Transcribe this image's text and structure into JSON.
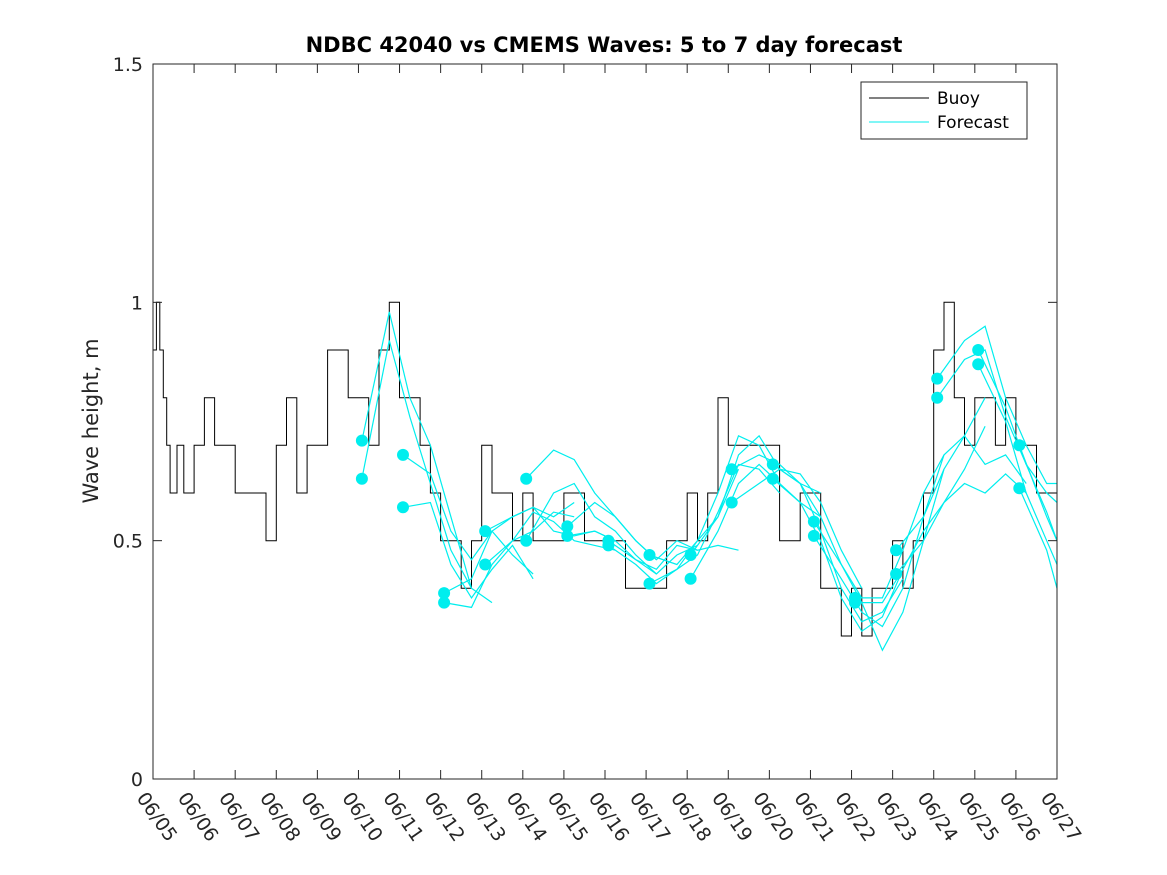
{
  "colors": {
    "buoy": "#000000",
    "forecast": "#00eeee",
    "axis": "#262626"
  },
  "chart_data": {
    "type": "line",
    "title": "NDBC 42040 vs CMEMS Waves: 5 to 7 day forecast",
    "xlabel": "",
    "ylabel": "Wave height, m",
    "xlim": [
      "06/05",
      "06/27"
    ],
    "ylim": [
      0,
      1.5
    ],
    "yticks": [
      0,
      0.5,
      1,
      1.5
    ],
    "ytick_labels": [
      "0",
      "0.5",
      "1",
      "1.5"
    ],
    "xtick_labels": [
      "06/05",
      "06/06",
      "06/07",
      "06/08",
      "06/09",
      "06/10",
      "06/11",
      "06/12",
      "06/13",
      "06/14",
      "06/15",
      "06/16",
      "06/17",
      "06/18",
      "06/19",
      "06/20",
      "06/21",
      "06/22",
      "06/23",
      "06/24",
      "06/25",
      "06/26",
      "06/27"
    ],
    "legend": {
      "position": "top-right",
      "entries": [
        "Buoy",
        "Forecast"
      ]
    },
    "grid": false,
    "series": [
      {
        "name": "Buoy",
        "x": [
          "06/05 00:00",
          "06/05 02:00",
          "06/05 04:00",
          "06/05 06:00",
          "06/05 08:00",
          "06/05 10:00",
          "06/05 14:00",
          "06/05 18:00",
          "06/06 00:00",
          "06/06 06:00",
          "06/06 12:00",
          "06/06 18:00",
          "06/07 00:00",
          "06/07 06:00",
          "06/07 12:00",
          "06/07 18:00",
          "06/08 00:00",
          "06/08 06:00",
          "06/08 12:00",
          "06/08 18:00",
          "06/09 00:00",
          "06/09 06:00",
          "06/09 12:00",
          "06/09 18:00",
          "06/10 00:00",
          "06/10 06:00",
          "06/10 12:00",
          "06/10 18:00",
          "06/11 00:00",
          "06/11 06:00",
          "06/11 12:00",
          "06/11 18:00",
          "06/12 00:00",
          "06/12 06:00",
          "06/12 12:00",
          "06/12 18:00",
          "06/13 00:00",
          "06/13 06:00",
          "06/13 12:00",
          "06/13 18:00",
          "06/14 00:00",
          "06/14 06:00",
          "06/14 12:00",
          "06/14 18:00",
          "06/15 00:00",
          "06/15 06:00",
          "06/15 12:00",
          "06/15 18:00",
          "06/16 00:00",
          "06/16 06:00",
          "06/16 12:00",
          "06/16 18:00",
          "06/17 00:00",
          "06/17 06:00",
          "06/17 12:00",
          "06/17 18:00",
          "06/18 00:00",
          "06/18 06:00",
          "06/18 12:00",
          "06/18 18:00",
          "06/19 00:00",
          "06/19 06:00",
          "06/19 12:00",
          "06/19 18:00",
          "06/20 00:00",
          "06/20 06:00",
          "06/20 12:00",
          "06/20 18:00",
          "06/21 00:00",
          "06/21 06:00",
          "06/21 12:00",
          "06/21 18:00",
          "06/22 00:00",
          "06/22 06:00",
          "06/22 12:00",
          "06/22 18:00",
          "06/23 00:00",
          "06/23 06:00",
          "06/23 12:00",
          "06/23 18:00",
          "06/24 00:00",
          "06/24 06:00",
          "06/24 12:00",
          "06/24 18:00",
          "06/25 00:00",
          "06/25 06:00",
          "06/25 12:00",
          "06/25 18:00",
          "06/26 00:00",
          "06/26 06:00",
          "06/26 12:00",
          "06/26 18:00",
          "06/27 00:00"
        ],
        "values": [
          0.9,
          1.0,
          0.9,
          0.8,
          0.7,
          0.6,
          0.7,
          0.6,
          0.7,
          0.8,
          0.7,
          0.7,
          0.6,
          0.6,
          0.6,
          0.5,
          0.7,
          0.8,
          0.6,
          0.7,
          0.7,
          0.9,
          0.9,
          0.8,
          0.8,
          0.7,
          0.9,
          1.0,
          0.8,
          0.8,
          0.7,
          0.6,
          0.5,
          0.5,
          0.4,
          0.5,
          0.7,
          0.6,
          0.6,
          0.5,
          0.6,
          0.5,
          0.5,
          0.5,
          0.6,
          0.6,
          0.5,
          0.5,
          0.5,
          0.5,
          0.4,
          0.4,
          0.4,
          0.4,
          0.5,
          0.5,
          0.6,
          0.5,
          0.6,
          0.8,
          0.7,
          0.7,
          0.7,
          0.7,
          0.7,
          0.5,
          0.5,
          0.6,
          0.6,
          0.4,
          0.4,
          0.3,
          0.4,
          0.3,
          0.4,
          0.4,
          0.5,
          0.4,
          0.5,
          0.6,
          0.9,
          1.0,
          0.8,
          0.7,
          0.8,
          0.8,
          0.7,
          0.8,
          0.7,
          0.7,
          0.6,
          0.6,
          0.5
        ]
      },
      {
        "name": "Forecast",
        "runs": [
          {
            "x": [
              "06/10 02:00",
              "06/10 18:00",
              "06/11 06:00",
              "06/11 18:00",
              "06/12 06:00",
              "06/12 18:00",
              "06/13 06:00"
            ],
            "values": [
              0.71,
              0.98,
              0.8,
              0.7,
              0.55,
              0.4,
              0.37
            ]
          },
          {
            "x": [
              "06/10 02:00",
              "06/10 18:00",
              "06/11 06:00",
              "06/11 18:00",
              "06/12 06:00",
              "06/12 18:00"
            ],
            "values": [
              0.63,
              0.92,
              0.76,
              0.62,
              0.48,
              0.4
            ]
          },
          {
            "x": [
              "06/11 02:00",
              "06/11 18:00",
              "06/12 06:00",
              "06/12 18:00",
              "06/13 06:00",
              "06/13 18:00",
              "06/14 06:00"
            ],
            "values": [
              0.68,
              0.64,
              0.52,
              0.46,
              0.52,
              0.47,
              0.43
            ]
          },
          {
            "x": [
              "06/11 02:00",
              "06/11 18:00",
              "06/12 06:00",
              "06/12 18:00",
              "06/13 06:00",
              "06/13 18:00",
              "06/14 06:00"
            ],
            "values": [
              0.57,
              0.58,
              0.45,
              0.38,
              0.44,
              0.49,
              0.42
            ]
          },
          {
            "x": [
              "06/12 02:00",
              "06/12 18:00",
              "06/13 06:00",
              "06/13 18:00",
              "06/14 06:00",
              "06/14 18:00",
              "06/15 06:00"
            ],
            "values": [
              0.39,
              0.42,
              0.52,
              0.55,
              0.57,
              0.55,
              0.58
            ]
          },
          {
            "x": [
              "06/12 02:00",
              "06/12 18:00",
              "06/13 06:00",
              "06/13 18:00",
              "06/14 06:00",
              "06/14 18:00",
              "06/15 06:00"
            ],
            "values": [
              0.37,
              0.36,
              0.45,
              0.5,
              0.52,
              0.56,
              0.55
            ]
          },
          {
            "x": [
              "06/13 02:00",
              "06/13 18:00",
              "06/14 06:00",
              "06/14 18:00",
              "06/15 06:00",
              "06/15 18:00",
              "06/16 06:00"
            ],
            "values": [
              0.52,
              0.55,
              0.57,
              0.52,
              0.51,
              0.52,
              0.5
            ]
          },
          {
            "x": [
              "06/13 02:00",
              "06/13 18:00",
              "06/14 06:00",
              "06/14 18:00",
              "06/15 06:00",
              "06/15 18:00",
              "06/16 06:00"
            ],
            "values": [
              0.45,
              0.5,
              0.56,
              0.54,
              0.5,
              0.49,
              0.48
            ]
          },
          {
            "x": [
              "06/14 02:00",
              "06/14 18:00",
              "06/15 06:00",
              "06/15 18:00",
              "06/16 06:00",
              "06/16 18:00",
              "06/17 06:00"
            ],
            "values": [
              0.63,
              0.69,
              0.67,
              0.6,
              0.55,
              0.5,
              0.46
            ]
          },
          {
            "x": [
              "06/14 02:00",
              "06/14 18:00",
              "06/15 06:00",
              "06/15 18:00",
              "06/16 06:00",
              "06/16 18:00",
              "06/17 06:00"
            ],
            "values": [
              0.5,
              0.6,
              0.62,
              0.55,
              0.52,
              0.47,
              0.43
            ]
          },
          {
            "x": [
              "06/15 02:00",
              "06/15 18:00",
              "06/16 06:00",
              "06/16 18:00",
              "06/17 06:00",
              "06/17 18:00",
              "06/18 06:00"
            ],
            "values": [
              0.53,
              0.58,
              0.55,
              0.5,
              0.46,
              0.5,
              0.48
            ]
          },
          {
            "x": [
              "06/15 02:00",
              "06/15 18:00",
              "06/16 06:00",
              "06/16 18:00",
              "06/17 06:00",
              "06/17 18:00",
              "06/18 06:00"
            ],
            "values": [
              0.51,
              0.52,
              0.5,
              0.46,
              0.43,
              0.47,
              0.49
            ]
          },
          {
            "x": [
              "06/16 02:00",
              "06/16 18:00",
              "06/17 06:00",
              "06/17 18:00",
              "06/18 06:00",
              "06/18 18:00",
              "06/19 06:00"
            ],
            "values": [
              0.5,
              0.46,
              0.44,
              0.49,
              0.48,
              0.49,
              0.48
            ]
          },
          {
            "x": [
              "06/16 02:00",
              "06/16 18:00",
              "06/17 06:00",
              "06/17 18:00",
              "06/18 06:00",
              "06/18 18:00",
              "06/19 06:00"
            ],
            "values": [
              0.49,
              0.45,
              0.41,
              0.44,
              0.5,
              0.55,
              0.65
            ]
          },
          {
            "x": [
              "06/17 02:00",
              "06/17 18:00",
              "06/18 06:00",
              "06/18 18:00",
              "06/19 06:00",
              "06/19 18:00",
              "06/20 06:00"
            ],
            "values": [
              0.47,
              0.45,
              0.5,
              0.6,
              0.72,
              0.7,
              0.62
            ]
          },
          {
            "x": [
              "06/17 02:00",
              "06/17 18:00",
              "06/18 06:00",
              "06/18 18:00",
              "06/19 06:00",
              "06/19 18:00",
              "06/20 06:00"
            ],
            "values": [
              0.41,
              0.44,
              0.47,
              0.56,
              0.66,
              0.65,
              0.6
            ]
          },
          {
            "x": [
              "06/18 02:00",
              "06/18 18:00",
              "06/19 06:00",
              "06/19 18:00",
              "06/20 06:00",
              "06/20 18:00",
              "06/21 06:00"
            ],
            "values": [
              0.47,
              0.55,
              0.68,
              0.72,
              0.65,
              0.62,
              0.6
            ]
          },
          {
            "x": [
              "06/18 02:00",
              "06/18 18:00",
              "06/19 06:00",
              "06/19 18:00",
              "06/20 06:00",
              "06/20 18:00",
              "06/21 06:00"
            ],
            "values": [
              0.42,
              0.52,
              0.62,
              0.66,
              0.62,
              0.58,
              0.55
            ]
          },
          {
            "x": [
              "06/19 02:00",
              "06/19 18:00",
              "06/20 06:00",
              "06/20 18:00",
              "06/21 06:00",
              "06/21 18:00",
              "06/22 06:00"
            ],
            "values": [
              0.65,
              0.68,
              0.66,
              0.62,
              0.55,
              0.45,
              0.38
            ]
          },
          {
            "x": [
              "06/19 02:00",
              "06/19 18:00",
              "06/20 06:00",
              "06/20 18:00",
              "06/21 06:00",
              "06/21 18:00",
              "06/22 06:00"
            ],
            "values": [
              0.58,
              0.62,
              0.65,
              0.64,
              0.58,
              0.48,
              0.4
            ]
          },
          {
            "x": [
              "06/20 02:00",
              "06/20 18:00",
              "06/21 06:00",
              "06/21 18:00",
              "06/22 06:00",
              "06/22 18:00",
              "06/23 06:00"
            ],
            "values": [
              0.66,
              0.62,
              0.52,
              0.4,
              0.33,
              0.35,
              0.42
            ]
          },
          {
            "x": [
              "06/20 02:00",
              "06/20 18:00",
              "06/21 06:00",
              "06/21 18:00",
              "06/22 06:00",
              "06/22 18:00",
              "06/23 06:00"
            ],
            "values": [
              0.63,
              0.58,
              0.5,
              0.38,
              0.31,
              0.34,
              0.44
            ]
          },
          {
            "x": [
              "06/21 02:00",
              "06/21 18:00",
              "06/22 06:00",
              "06/22 18:00",
              "06/23 06:00",
              "06/23 18:00",
              "06/24 06:00"
            ],
            "values": [
              0.54,
              0.45,
              0.37,
              0.27,
              0.35,
              0.5,
              0.65
            ]
          },
          {
            "x": [
              "06/21 02:00",
              "06/21 18:00",
              "06/22 06:00",
              "06/22 18:00",
              "06/23 06:00",
              "06/23 18:00",
              "06/24 06:00"
            ],
            "values": [
              0.51,
              0.42,
              0.35,
              0.32,
              0.4,
              0.55,
              0.68
            ]
          },
          {
            "x": [
              "06/22 02:00",
              "06/22 18:00",
              "06/23 06:00",
              "06/23 18:00",
              "06/24 06:00",
              "06/24 18:00",
              "06/25 06:00"
            ],
            "values": [
              0.38,
              0.38,
              0.48,
              0.6,
              0.68,
              0.72,
              0.8
            ]
          },
          {
            "x": [
              "06/22 02:00",
              "06/22 18:00",
              "06/23 06:00",
              "06/23 18:00",
              "06/24 06:00",
              "06/24 18:00",
              "06/25 06:00"
            ],
            "values": [
              0.37,
              0.37,
              0.44,
              0.52,
              0.58,
              0.65,
              0.74
            ]
          },
          {
            "x": [
              "06/23 02:00",
              "06/23 18:00",
              "06/24 06:00",
              "06/24 18:00",
              "06/25 06:00",
              "06/25 18:00",
              "06/26 06:00"
            ],
            "values": [
              0.48,
              0.55,
              0.65,
              0.72,
              0.66,
              0.68,
              0.62
            ]
          },
          {
            "x": [
              "06/23 02:00",
              "06/23 18:00",
              "06/24 06:00",
              "06/24 18:00",
              "06/25 06:00",
              "06/25 18:00",
              "06/26 06:00"
            ],
            "values": [
              0.43,
              0.5,
              0.58,
              0.62,
              0.6,
              0.64,
              0.6
            ]
          },
          {
            "x": [
              "06/24 02:00",
              "06/24 18:00",
              "06/25 06:00",
              "06/25 18:00",
              "06/26 06:00",
              "06/26 18:00",
              "06/27 00:00"
            ],
            "values": [
              0.84,
              0.92,
              0.95,
              0.8,
              0.7,
              0.62,
              0.62
            ]
          },
          {
            "x": [
              "06/24 02:00",
              "06/24 18:00",
              "06/25 06:00",
              "06/25 18:00",
              "06/26 06:00",
              "06/26 18:00",
              "06/27 00:00"
            ],
            "values": [
              0.8,
              0.88,
              0.9,
              0.76,
              0.66,
              0.6,
              0.58
            ]
          },
          {
            "x": [
              "06/25 02:00",
              "06/25 18:00",
              "06/26 06:00",
              "06/26 18:00",
              "06/27 00:00"
            ],
            "values": [
              0.9,
              0.78,
              0.66,
              0.56,
              0.5
            ]
          },
          {
            "x": [
              "06/25 02:00",
              "06/25 18:00",
              "06/26 06:00",
              "06/26 18:00",
              "06/27 00:00"
            ],
            "values": [
              0.87,
              0.75,
              0.6,
              0.5,
              0.45
            ]
          },
          {
            "x": [
              "06/26 02:00",
              "06/26 18:00",
              "06/27 00:00"
            ],
            "values": [
              0.7,
              0.55,
              0.5
            ]
          },
          {
            "x": [
              "06/26 02:00",
              "06/26 18:00",
              "06/27 00:00"
            ],
            "values": [
              0.61,
              0.48,
              0.4
            ]
          }
        ]
      }
    ]
  }
}
